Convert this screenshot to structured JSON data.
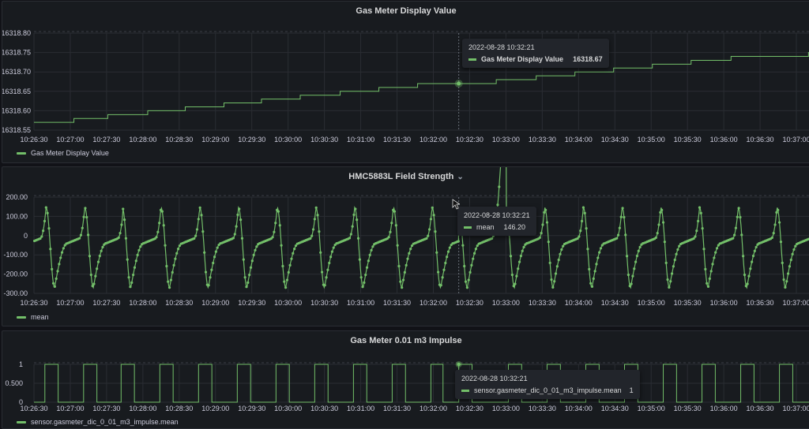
{
  "colors": {
    "series": "#73bf69",
    "background": "#111217",
    "panel": "#181b1f",
    "grid": "#2a2d33",
    "text": "#ccccdc"
  },
  "x_ticks": [
    "10:26:30",
    "10:27:00",
    "10:27:30",
    "10:28:00",
    "10:28:30",
    "10:29:00",
    "10:29:30",
    "10:30:00",
    "10:30:30",
    "10:31:00",
    "10:31:30",
    "10:32:00",
    "10:32:30",
    "10:33:00",
    "10:33:30",
    "10:34:00",
    "10:34:30",
    "10:35:00",
    "10:35:30",
    "10:36:00",
    "10:36:30",
    "10:37:00"
  ],
  "panels": [
    {
      "title": "Gas Meter Display Value",
      "legend": "Gas Meter Display Value",
      "tooltip": {
        "time": "2022-08-28 10:32:21",
        "series": "Gas Meter Display Value",
        "value": "16318.67"
      }
    },
    {
      "title": "HMC5883L Field Strength",
      "legend": "mean",
      "tooltip": {
        "time": "2022-08-28 10:32:21",
        "series": "mean",
        "value": "146.20"
      }
    },
    {
      "title": "Gas Meter 0.01 m3 Impulse",
      "legend": "sensor.gasmeter_dic_0_01_m3_impulse.mean",
      "tooltip": {
        "time": "2022-08-28 10:32:21",
        "series": "sensor.gasmeter_dic_0_01_m3_impulse.mean",
        "value": "1"
      }
    }
  ],
  "chart_data": [
    {
      "type": "line",
      "title": "Gas Meter Display Value",
      "x_range": [
        "10:26:30",
        "10:37:15"
      ],
      "y_ticks": [
        "16318.55",
        "16318.60",
        "16318.65",
        "16318.70",
        "16318.75",
        "16318.80"
      ],
      "ylim": [
        16318.55,
        16318.8
      ],
      "series": [
        {
          "name": "Gas Meter Display Value",
          "step": true,
          "x": [
            "10:26:30",
            "10:27:03",
            "10:27:31",
            "10:28:04",
            "10:28:35",
            "10:29:07",
            "10:29:38",
            "10:30:10",
            "10:30:43",
            "10:31:15",
            "10:31:47",
            "10:32:21",
            "10:32:52",
            "10:33:25",
            "10:33:57",
            "10:34:29",
            "10:35:01",
            "10:35:33",
            "10:36:06",
            "10:36:38",
            "10:37:10"
          ],
          "y": [
            16318.57,
            16318.58,
            16318.59,
            16318.6,
            16318.61,
            16318.62,
            16318.63,
            16318.64,
            16318.65,
            16318.66,
            16318.67,
            16318.67,
            16318.68,
            16318.69,
            16318.7,
            16318.71,
            16318.72,
            16318.73,
            16318.74,
            16318.74,
            16318.75
          ]
        }
      ],
      "grid": true,
      "legend": "bottom-left"
    },
    {
      "type": "line",
      "title": "HMC5883L Field Strength",
      "x_range": [
        "10:26:30",
        "10:37:15"
      ],
      "y_ticks": [
        "200.00",
        "100.00",
        "0",
        "-100.00",
        "-200.00",
        "-300.00"
      ],
      "ylim": [
        -300,
        200
      ],
      "series": [
        {
          "name": "mean",
          "markers": true,
          "shape": "periodic sawtooth oscillation",
          "peak_times": [
            "10:26:40",
            "10:27:12",
            "10:27:43",
            "10:28:15",
            "10:28:47",
            "10:29:19",
            "10:29:51",
            "10:30:23",
            "10:30:55",
            "10:31:27",
            "10:31:59",
            "10:32:21",
            "10:33:00",
            "10:33:32",
            "10:34:04",
            "10:34:36",
            "10:35:08",
            "10:35:40",
            "10:36:12",
            "10:36:44"
          ],
          "peak": 146.2,
          "trough": -270
        }
      ],
      "grid": true,
      "legend": "bottom-left"
    },
    {
      "type": "line",
      "title": "Gas Meter 0.01 m3 Impulse",
      "x_range": [
        "10:26:30",
        "10:37:15"
      ],
      "y_ticks": [
        "1",
        "0.500",
        "0"
      ],
      "ylim": [
        0,
        1
      ],
      "series": [
        {
          "name": "sensor.gasmeter_dic_0_01_m3_impulse.mean",
          "step": true,
          "pulses_on": [
            "10:26:39",
            "10:27:11",
            "10:27:42",
            "10:28:14",
            "10:28:46",
            "10:29:18",
            "10:29:50",
            "10:30:22",
            "10:30:54",
            "10:31:26",
            "10:31:58",
            "10:32:21",
            "10:33:02",
            "10:33:34",
            "10:34:06",
            "10:34:38",
            "10:35:10",
            "10:35:42",
            "10:36:14",
            "10:36:46"
          ],
          "pulses_off": [
            "10:26:50",
            "10:27:22",
            "10:27:53",
            "10:28:25",
            "10:28:57",
            "10:29:29",
            "10:30:01",
            "10:30:33",
            "10:31:05",
            "10:31:37",
            "10:32:08",
            "10:32:32",
            "10:33:13",
            "10:33:45",
            "10:34:17",
            "10:34:49",
            "10:35:21",
            "10:35:53",
            "10:36:25",
            "10:36:57"
          ]
        }
      ],
      "grid": true,
      "legend": "bottom-left"
    }
  ]
}
